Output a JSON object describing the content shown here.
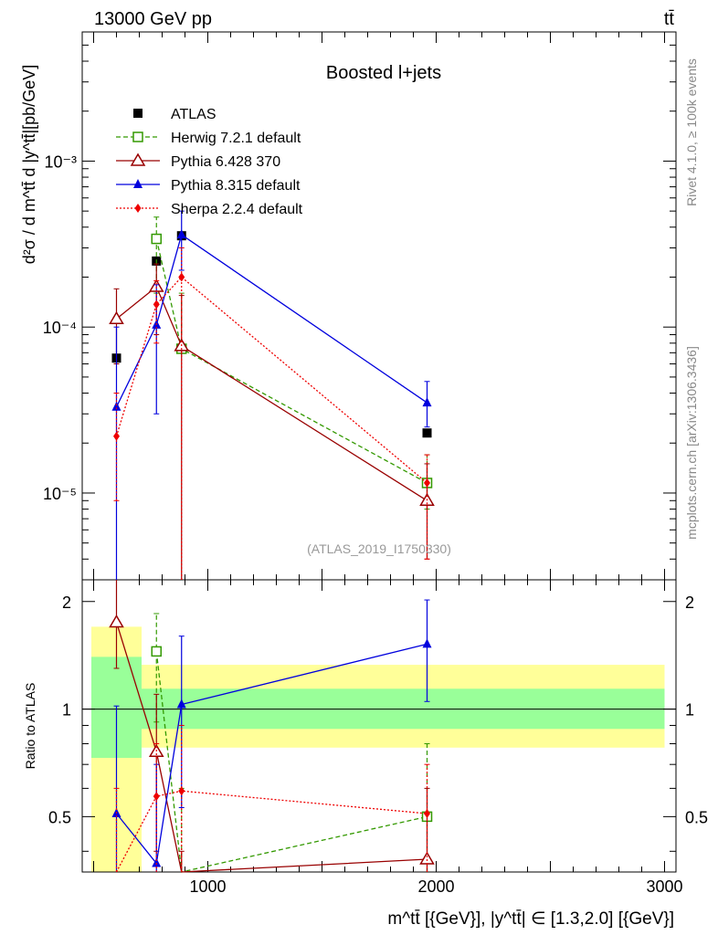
{
  "header": {
    "energy_label": "13000 GeV pp",
    "process_label": "tt̄",
    "rivet_label": "Rivet 4.1.0, ≥ 100k events",
    "source_label": "mcplots.cern.ch [arXiv:1306.3436]",
    "analysis_label": "(ATLAS_2019_I1750330)"
  },
  "chart_data": {
    "type": "line",
    "title": "Boosted l+jets",
    "ylabel_main": "d²σ / d m^tt̄ d |y^tt̄|[pb/GeV]",
    "ylabel_ratio": "Ratio to ATLAS",
    "xlabel": "m^tt̄ [{GeV}], |y^tt̄| ∈ [1.3,2.0] [{GeV}]",
    "xlim": [
      450,
      3050
    ],
    "ylim_main": [
      3e-06,
      0.006
    ],
    "ylim_ratio": [
      0.35,
      2.3
    ],
    "x_ticks": [
      1000,
      2000,
      3000
    ],
    "x_tick_labels": [
      "1000",
      "2000",
      "3000"
    ],
    "y_ticks_main": [
      1e-05,
      0.0001,
      0.001
    ],
    "y_tick_labels_main": [
      "10⁻⁵",
      "10⁻⁴",
      "10⁻³"
    ],
    "y_ticks_ratio": [
      0.5,
      1,
      2
    ],
    "y_tick_labels_ratio": [
      "0.5",
      "1",
      "2"
    ],
    "ratio_bands": [
      {
        "x0": 490,
        "x1": 710,
        "inner": [
          0.73,
          1.4
        ],
        "outer": [
          0.3,
          1.7
        ]
      },
      {
        "x0": 710,
        "x1": 3000,
        "inner": [
          0.88,
          1.14
        ],
        "outer": [
          0.78,
          1.33
        ]
      }
    ],
    "series": [
      {
        "name": "ATLAS",
        "color": "#000000",
        "marker": "square-filled",
        "dash": "",
        "x": [
          600,
          775,
          885,
          1960
        ],
        "y": [
          6.5e-05,
          0.00025,
          0.000355,
          2.3e-05
        ]
      },
      {
        "name": "Herwig 7.2.1 default",
        "color": "#339900",
        "marker": "square-open",
        "dash": "5,3",
        "x": [
          775,
          885,
          1960
        ],
        "y": [
          0.00034,
          7.4e-05,
          1.15e-05
        ],
        "err_lo": [
          0.00016,
          7.3e-05,
          8e-06
        ],
        "err_hi": [
          0.00046,
          0.00016,
          1.7e-05
        ],
        "ratio": [
          1.45,
          0.21,
          0.5
        ],
        "ratio_lo": [
          0.92,
          0.1,
          0.2
        ],
        "ratio_hi": [
          1.85,
          0.6,
          0.8
        ]
      },
      {
        "name": "Pythia 6.428 370",
        "color": "#990000",
        "marker": "triangle-open",
        "dash": "",
        "x": [
          600,
          775,
          885,
          1960
        ],
        "y": [
          0.000112,
          0.000175,
          7.7e-05,
          9e-06
        ],
        "err_lo": [
          6e-05,
          9e-05,
          1e-06,
          4e-06
        ],
        "err_hi": [
          0.00017,
          0.00024,
          0.000155,
          1.5e-05
        ],
        "ratio": [
          1.75,
          0.76,
          0.1,
          0.38
        ],
        "ratio_lo": [
          1.3,
          0.4,
          0.01,
          0.2
        ],
        "ratio_hi": [
          2.5,
          1.1,
          0.4,
          0.6
        ]
      },
      {
        "name": "Pythia 8.315 default",
        "color": "#0000dd",
        "marker": "triangle-filled",
        "dash": "",
        "x": [
          600,
          775,
          885,
          1960
        ],
        "y": [
          3.3e-05,
          0.000103,
          0.00036,
          3.5e-05
        ],
        "err_lo": [
          1e-06,
          3e-05,
          0.00022,
          2.5e-05
        ],
        "err_hi": [
          0.0001,
          0.00018,
          0.0005,
          4.7e-05
        ],
        "ratio": [
          0.51,
          0.37,
          1.03,
          1.52
        ],
        "ratio_lo": [
          0.05,
          0.1,
          0.53,
          1.05
        ],
        "ratio_hi": [
          1.02,
          0.7,
          1.6,
          2.02
        ]
      },
      {
        "name": "Sherpa 2.2.4 default",
        "color": "#ee0000",
        "marker": "diamond-filled",
        "dash": "2,2",
        "x": [
          600,
          775,
          885,
          1960
        ],
        "y": [
          2.2e-05,
          0.000137,
          0.0002,
          1.15e-05
        ],
        "err_lo": [
          9e-06,
          8e-05,
          1e-06,
          4e-06
        ],
        "err_hi": [
          4e-05,
          0.00019,
          0.0003,
          1.7e-05
        ],
        "ratio": [
          0.34,
          0.57,
          0.59,
          0.51
        ],
        "ratio_lo": [
          0.1,
          0.3,
          0.3,
          0.3
        ],
        "ratio_hi": [
          0.6,
          0.8,
          0.9,
          0.7
        ]
      }
    ]
  }
}
